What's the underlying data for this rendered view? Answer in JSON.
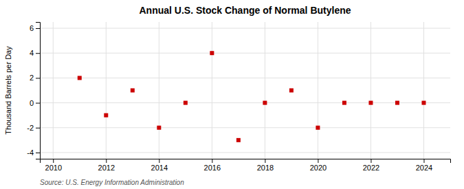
{
  "chart_data": {
    "type": "scatter",
    "title": "Annual U.S. Stock Change of Normal Butylene",
    "ylabel": "Thousand Barrels per Day",
    "annotation": "Source: U.S. Energy Information Administration",
    "x": [
      2011,
      2012,
      2013,
      2014,
      2015,
      2016,
      2017,
      2018,
      2019,
      2020,
      2021,
      2022,
      2023,
      2024
    ],
    "values": [
      2,
      -1,
      1,
      -2,
      0,
      4,
      -3,
      0,
      1,
      -2,
      0,
      0,
      0,
      0
    ],
    "xlim": [
      2009.5,
      2025
    ],
    "ylim": [
      -4.5,
      6.5
    ],
    "xticks": [
      2010,
      2012,
      2014,
      2016,
      2018,
      2020,
      2022,
      2024
    ],
    "yticks": [
      -4,
      -2,
      0,
      2,
      4,
      6
    ],
    "color": "#cc0000",
    "marker": "square",
    "grid": true
  }
}
